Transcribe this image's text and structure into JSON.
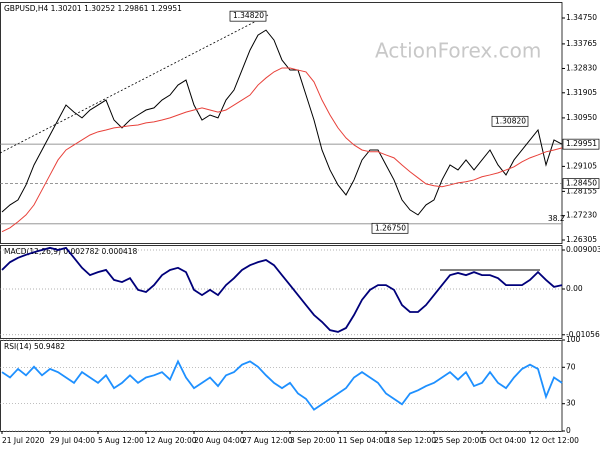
{
  "chart_data": [
    {
      "type": "line",
      "title": "GBPUSD,H4  1.30201 1.30252 1.29861 1.29951",
      "watermark": "ActionForex.com",
      "categories": [
        "21 Jul 2020",
        null,
        null,
        null,
        null,
        null,
        "29 Jul 04:00",
        null,
        null,
        null,
        null,
        null,
        "5 Aug 12:00",
        null,
        null,
        null,
        null,
        null,
        "12 Aug 20:00",
        null,
        null,
        null,
        null,
        null,
        "20 Aug 04:00",
        null,
        null,
        null,
        null,
        null,
        "27 Aug 12:00",
        null,
        null,
        null,
        null,
        null,
        "3 Sep 20:00",
        null,
        null,
        null,
        null,
        null,
        "11 Sep 04:00",
        null,
        null,
        null,
        null,
        null,
        "18 Sep 12:00",
        null,
        null,
        null,
        null,
        null,
        "25 Sep 20:00",
        null,
        null,
        null,
        null,
        null,
        "5 Oct 04:00",
        null,
        null,
        null,
        null,
        null,
        "12 Oct 12:00",
        null,
        null,
        null,
        null
      ],
      "series": [
        {
          "color": "#000000",
          "values": [
            1.2737,
            1.2764,
            1.2783,
            1.284,
            1.2916,
            1.2973,
            1.303,
            1.3087,
            1.3144,
            1.3117,
            1.3095,
            1.3125,
            1.3144,
            1.3163,
            1.3087,
            1.3057,
            1.3087,
            1.3106,
            1.3125,
            1.3133,
            1.3163,
            1.3182,
            1.322,
            1.3239,
            1.3144,
            1.3087,
            1.3106,
            1.3095,
            1.3163,
            1.3201,
            1.3277,
            1.3353,
            1.341,
            1.3429,
            1.3391,
            1.3315,
            1.3277,
            1.3277,
            1.3182,
            1.3087,
            1.2973,
            1.2897,
            1.284,
            1.2802,
            1.2859,
            1.2935,
            1.2973,
            1.2973,
            1.2916,
            1.2859,
            1.2783,
            1.2745,
            1.2726,
            1.2764,
            1.2783,
            1.2859,
            1.2916,
            1.2897,
            1.2935,
            1.2897,
            1.2935,
            1.2973,
            1.2916,
            1.2878,
            1.2935,
            1.2973,
            1.3011,
            1.3049,
            1.2916,
            1.3011,
            1.2995
          ]
        },
        {
          "color": "#e8413a",
          "values": [
            1.2662,
            1.2677,
            1.27,
            1.2726,
            1.2764,
            1.2821,
            1.2878,
            1.2935,
            1.2973,
            1.2992,
            1.3011,
            1.303,
            1.3042,
            1.3049,
            1.3057,
            1.3061,
            1.3065,
            1.3068,
            1.3076,
            1.308,
            1.3087,
            1.3095,
            1.3106,
            1.3117,
            1.3125,
            1.3133,
            1.3125,
            1.3117,
            1.3125,
            1.3144,
            1.3163,
            1.3182,
            1.322,
            1.3247,
            1.327,
            1.3285,
            1.3285,
            1.3277,
            1.327,
            1.3232,
            1.3163,
            1.3106,
            1.3057,
            1.3019,
            1.2992,
            1.2973,
            1.2966,
            1.2966,
            1.2954,
            1.2943,
            1.2916,
            1.289,
            1.2867,
            1.2844,
            1.2837,
            1.2833,
            1.284,
            1.2848,
            1.2852,
            1.2859,
            1.2871,
            1.2878,
            1.2886,
            1.2897,
            1.2909,
            1.2928,
            1.2943,
            1.2954,
            1.2966,
            1.2973,
            1.2981
          ]
        }
      ],
      "ylim": [
        1.26191,
        1.35359
      ],
      "yticks": [
        {
          "value": 1.3475,
          "label": "1.34750"
        },
        {
          "value": 1.33765,
          "label": "1.33765"
        },
        {
          "value": 1.3283,
          "label": "1.32830"
        },
        {
          "value": 1.31905,
          "label": "1.31905"
        },
        {
          "value": 1.3095,
          "label": "1.30950"
        },
        {
          "value": 1.29105,
          "label": "1.29105"
        },
        {
          "value": 1.28155,
          "label": "1.28155"
        },
        {
          "value": 1.2723,
          "label": "1.27230"
        },
        {
          "value": 1.26305,
          "label": "1.26305"
        }
      ],
      "levels": [
        {
          "value": 1.29951,
          "label": "1.29951",
          "style": "solid"
        },
        {
          "value": 1.2845,
          "label": "1.28450",
          "style": "dashed"
        }
      ],
      "annotations": [
        {
          "value": 1.3482,
          "label": "1.34820"
        },
        {
          "value": 1.3082,
          "label": "1.30820"
        },
        {
          "value": 1.2675,
          "label": "1.26750"
        }
      ],
      "fib": {
        "level": 38.2,
        "price": 1.2692
      }
    },
    {
      "type": "line",
      "title": "MACD(12,26,9) 0.002782 0.000418",
      "series": [
        {
          "color": "#00007a",
          "values": [
            0.0044,
            0.0062,
            0.0072,
            0.0079,
            0.0085,
            0.009,
            0.0095,
            0.009,
            0.0095,
            0.0072,
            0.0049,
            0.0032,
            0.0039,
            0.0044,
            0.0021,
            0.0016,
            0.0025,
            -0.0002,
            -0.0007,
            0.0009,
            0.0032,
            0.0044,
            0.0049,
            0.0039,
            -0.0002,
            -0.0014,
            -0.0002,
            -0.0014,
            0.0009,
            0.0025,
            0.0044,
            0.0055,
            0.0062,
            0.0067,
            0.0055,
            0.0032,
            0.0009,
            -0.0014,
            -0.0037,
            -0.006,
            -0.0076,
            -0.0095,
            -0.0099,
            -0.009,
            -0.006,
            -0.0025,
            -0.0002,
            0.0009,
            0.0009,
            -0.0002,
            -0.0037,
            -0.0053,
            -0.0053,
            -0.0037,
            -0.0014,
            0.0009,
            0.0032,
            0.0037,
            0.0032,
            0.0039,
            0.0032,
            0.0032,
            0.0025,
            0.0009,
            0.0009,
            0.0009,
            0.0021,
            0.0039,
            0.0021,
            0.0005,
            0.0009
          ]
        }
      ],
      "ylim": [
        -0.01131,
        0.01016
      ],
      "yticks": [
        0.009003,
        {
          "value": 0,
          "label": "0.00"
        },
        -0.010566
      ]
    },
    {
      "type": "line",
      "title": "RSI(14) 50.9482",
      "series": [
        {
          "color": "#1e90ff",
          "values": [
            64.7,
            58.8,
            68.2,
            61.2,
            70.6,
            61.2,
            68.2,
            64.7,
            58.8,
            52.9,
            64.7,
            58.8,
            52.9,
            61.2,
            47.1,
            52.9,
            61.2,
            52.9,
            58.8,
            61.2,
            64.7,
            56.5,
            76.5,
            58.8,
            47.1,
            52.9,
            58.8,
            49.4,
            61.2,
            64.7,
            72.9,
            76.5,
            70.6,
            61.2,
            52.9,
            47.1,
            52.9,
            41.2,
            35.3,
            23.5,
            29.4,
            35.3,
            41.2,
            47.1,
            58.8,
            64.7,
            58.8,
            52.9,
            41.2,
            35.3,
            29.4,
            41.2,
            44.7,
            49.4,
            52.9,
            58.8,
            64.7,
            56.5,
            64.7,
            49.4,
            52.9,
            64.7,
            52.9,
            47.1,
            58.8,
            68.2,
            72.9,
            68.2,
            37.6,
            58.8,
            52.9
          ]
        }
      ],
      "ylim": [
        0,
        100
      ],
      "yticks": [
        100,
        70,
        30,
        0
      ]
    }
  ]
}
